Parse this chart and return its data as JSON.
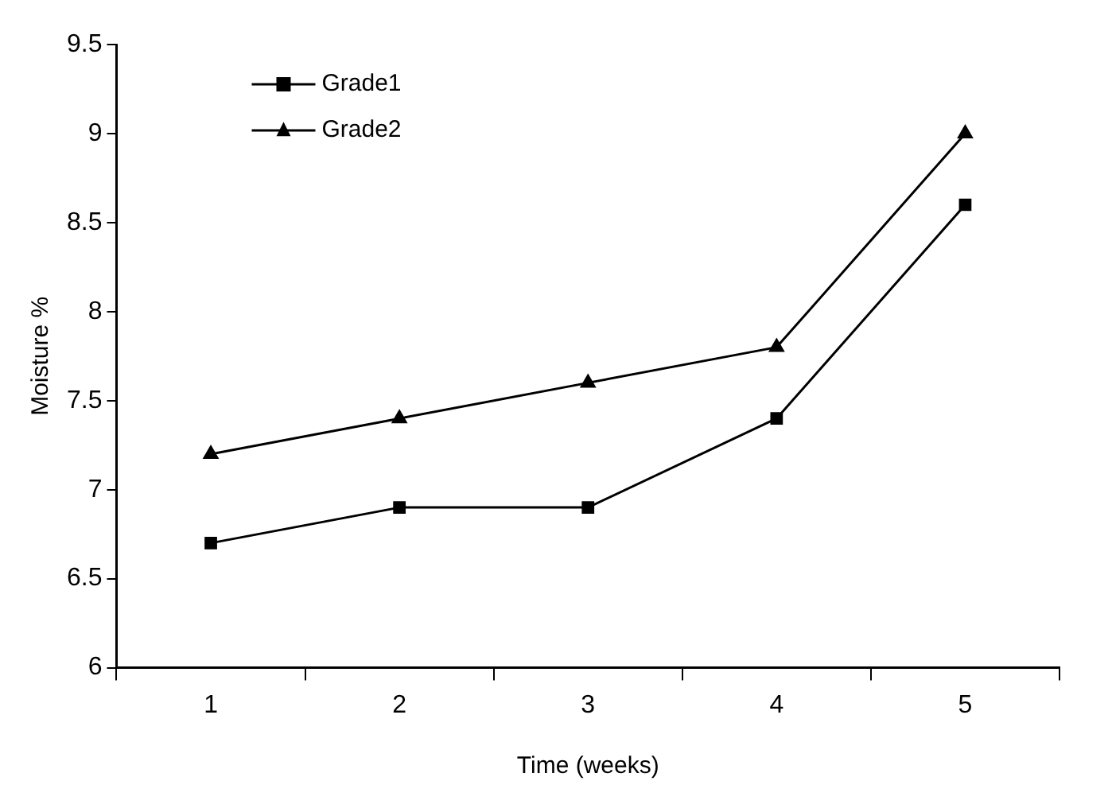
{
  "chart_data": {
    "type": "line",
    "xlabel": "Time (weeks)",
    "ylabel": "Moisture %",
    "categories": [
      "1",
      "2",
      "3",
      "4",
      "5"
    ],
    "series": [
      {
        "name": "Grade1",
        "color": "#000000",
        "marker": "square",
        "values": [
          6.7,
          6.9,
          6.9,
          7.4,
          8.6
        ]
      },
      {
        "name": "Grade2",
        "color": "#000000",
        "marker": "triangle",
        "values": [
          7.2,
          7.4,
          7.6,
          7.8,
          9.0
        ]
      }
    ],
    "ylim": [
      6,
      9.5
    ],
    "yticks": [
      6,
      6.5,
      7,
      7.5,
      8,
      8.5,
      9,
      9.5
    ],
    "grid": false,
    "legend": "top left",
    "line_style": "solid"
  }
}
